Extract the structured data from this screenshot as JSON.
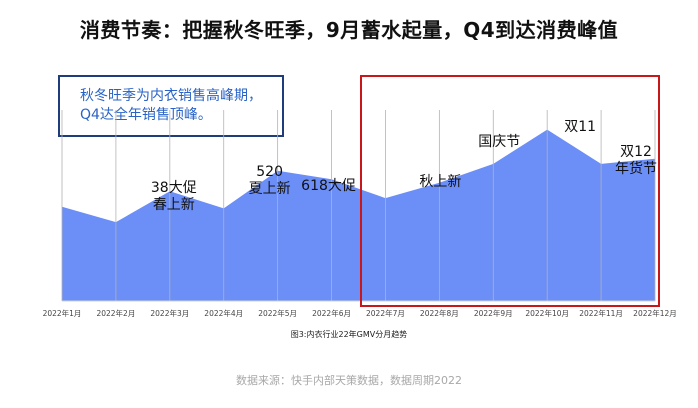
{
  "title": "消费节奏：把握秋冬旺季，9月蓄水起量，Q4到达消费峰值",
  "callout": {
    "line1": "秋冬旺季为内衣销售高峰期，",
    "line2": "Q4达全年销售顶峰。"
  },
  "caption": "图3:内衣行业22年GMV分月趋势",
  "source": "数据来源：快手内部天策数据，数据周期2022",
  "colors": {
    "area_fill": "#6b8ef7",
    "gridline": "#b3b3b3",
    "highlight_border": "#c8171b",
    "callout_border": "#1f3d7a",
    "callout_text": "#2a63c7"
  },
  "chart_data": {
    "type": "area",
    "categories": [
      "2022年1月",
      "2022年2月",
      "2022年3月",
      "2022年4月",
      "2022年5月",
      "2022年6月",
      "2022年7月",
      "2022年8月",
      "2022年9月",
      "2022年10月",
      "2022年11月",
      "2022年12月"
    ],
    "series": [
      {
        "values": [
          55,
          46,
          64,
          54,
          76,
          71,
          60,
          69,
          80,
          100,
          80,
          83
        ]
      }
    ],
    "ylim": [
      0,
      105
    ],
    "yaxis_visible": false,
    "grid": "vertical",
    "annotations": [
      {
        "month_index": 2,
        "lines": [
          "38大促",
          "春上新"
        ]
      },
      {
        "month_index": 4,
        "lines": [
          "520",
          "夏上新"
        ]
      },
      {
        "month_index": 5,
        "lines": [
          "618大促"
        ]
      },
      {
        "month_index": 7,
        "lines": [
          "秋上新"
        ]
      },
      {
        "month_index": 8,
        "lines": [
          "国庆节"
        ]
      },
      {
        "month_index": 9,
        "lines": [
          "双11"
        ]
      },
      {
        "month_index": 11,
        "lines": [
          "双12",
          "年货节"
        ]
      }
    ]
  }
}
